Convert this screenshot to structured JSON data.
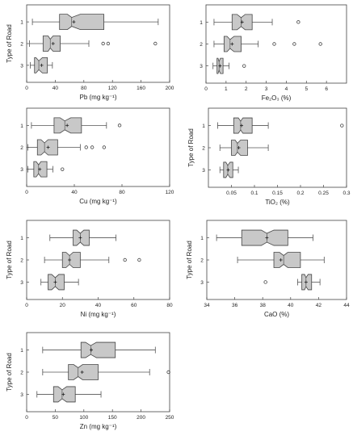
{
  "chart_data": [
    {
      "type": "boxplot",
      "xlabel": "Pb (mg kg⁻¹)",
      "ylabel": "Type of Road",
      "xlim": [
        0,
        200
      ],
      "xticks": [
        0,
        40,
        80,
        120,
        160,
        200
      ],
      "categories": [
        "1",
        "2",
        "3"
      ],
      "boxes": [
        {
          "min": 8,
          "q1": 46,
          "notch_lo": 57,
          "median": 63,
          "notch_hi": 75,
          "q3": 108,
          "max": 184,
          "mean": 66,
          "outliers": []
        },
        {
          "min": 4,
          "q1": 23,
          "notch_lo": 30,
          "median": 33,
          "notch_hi": 37,
          "q3": 47,
          "max": 87,
          "mean": 37,
          "outliers": [
            107,
            114,
            180
          ]
        },
        {
          "min": 5,
          "q1": 11,
          "notch_lo": 13,
          "median": 17,
          "notch_hi": 22,
          "q3": 29,
          "max": 36,
          "mean": 21,
          "outliers": []
        }
      ]
    },
    {
      "type": "boxplot",
      "xlabel": "Fe₂O₃ (%)",
      "ylabel": "",
      "xlim": [
        0,
        7
      ],
      "xticks": [
        0,
        1,
        2,
        3,
        4,
        5,
        6
      ],
      "categories": [
        "1",
        "2",
        "3"
      ],
      "boxes": [
        {
          "min": 0.4,
          "q1": 1.3,
          "notch_lo": 1.55,
          "median": 1.75,
          "notch_hi": 1.95,
          "q3": 2.3,
          "max": 3.3,
          "mean": 1.8,
          "outliers": [
            4.6
          ]
        },
        {
          "min": 0.4,
          "q1": 0.9,
          "notch_lo": 1.05,
          "median": 1.2,
          "notch_hi": 1.4,
          "q3": 1.75,
          "max": 2.6,
          "mean": 1.3,
          "outliers": [
            3.4,
            4.4,
            5.7
          ]
        },
        {
          "min": 0.35,
          "q1": 0.55,
          "notch_lo": 0.6,
          "median": 0.65,
          "notch_hi": 0.72,
          "q3": 0.85,
          "max": 1.15,
          "mean": 0.7,
          "outliers": [
            1.9
          ]
        }
      ]
    },
    {
      "type": "boxplot",
      "xlabel": "Cu (mg kg⁻¹)",
      "ylabel": "",
      "xlim": [
        0,
        120
      ],
      "xticks": [
        0,
        40,
        80,
        120
      ],
      "categories": [
        "1",
        "2",
        "3"
      ],
      "boxes": [
        {
          "min": 4,
          "q1": 23,
          "notch_lo": 28,
          "median": 32,
          "notch_hi": 37,
          "q3": 46,
          "max": 67,
          "mean": 34,
          "outliers": [
            78
          ]
        },
        {
          "min": 1,
          "q1": 9,
          "notch_lo": 12,
          "median": 15,
          "notch_hi": 18,
          "q3": 26,
          "max": 45,
          "mean": 18,
          "outliers": [
            50,
            55,
            65
          ]
        },
        {
          "min": 1,
          "q1": 6,
          "notch_lo": 8,
          "median": 10,
          "notch_hi": 12,
          "q3": 17,
          "max": 22,
          "mean": 11,
          "outliers": [
            30
          ]
        }
      ]
    },
    {
      "type": "boxplot",
      "xlabel": "TiO₂ (%)",
      "ylabel": "Type of Road",
      "xlim": [
        0,
        0.3
      ],
      "xticks": [
        0.05,
        0.1,
        0.15,
        0.2,
        0.25,
        0.3
      ],
      "categories": [
        "1",
        "2",
        "3"
      ],
      "boxes": [
        {
          "min": 0.02,
          "q1": 0.055,
          "notch_lo": 0.065,
          "median": 0.07,
          "notch_hi": 0.075,
          "q3": 0.095,
          "max": 0.13,
          "mean": 0.072,
          "outliers": [
            0.29
          ]
        },
        {
          "min": 0.025,
          "q1": 0.05,
          "notch_lo": 0.058,
          "median": 0.063,
          "notch_hi": 0.07,
          "q3": 0.085,
          "max": 0.13,
          "mean": 0.066,
          "outliers": []
        },
        {
          "min": 0.025,
          "q1": 0.033,
          "notch_lo": 0.038,
          "median": 0.042,
          "notch_hi": 0.047,
          "q3": 0.053,
          "max": 0.065,
          "mean": 0.043,
          "outliers": []
        }
      ]
    },
    {
      "type": "boxplot",
      "xlabel": "Ni (mg kg⁻¹)",
      "ylabel": "Type of Road",
      "xlim": [
        0,
        80
      ],
      "xticks": [
        0,
        20,
        40,
        60,
        80
      ],
      "categories": [
        "1",
        "2",
        "3"
      ],
      "boxes": [
        {
          "min": 13,
          "q1": 26,
          "notch_lo": 28,
          "median": 30,
          "notch_hi": 32,
          "q3": 35,
          "max": 50,
          "mean": 30,
          "outliers": []
        },
        {
          "min": 10,
          "q1": 20,
          "notch_lo": 22,
          "median": 24,
          "notch_hi": 26,
          "q3": 30,
          "max": 46,
          "mean": 24,
          "outliers": [
            55,
            63
          ]
        },
        {
          "min": 8,
          "q1": 12,
          "notch_lo": 14,
          "median": 16,
          "notch_hi": 18,
          "q3": 21,
          "max": 29,
          "mean": 16,
          "outliers": []
        }
      ]
    },
    {
      "type": "boxplot",
      "xlabel": "CaO (%)",
      "ylabel": "Type of Road",
      "xlim": [
        34,
        44
      ],
      "xticks": [
        34,
        36,
        38,
        40,
        42,
        44
      ],
      "categories": [
        "1",
        "2",
        "3"
      ],
      "boxes": [
        {
          "min": 34.7,
          "q1": 36.5,
          "notch_lo": 37.9,
          "median": 38.3,
          "notch_hi": 38.8,
          "q3": 39.8,
          "max": 41.6,
          "mean": 38.3,
          "outliers": []
        },
        {
          "min": 36.2,
          "q1": 38.8,
          "notch_lo": 39.2,
          "median": 39.5,
          "notch_hi": 39.8,
          "q3": 40.7,
          "max": 42.4,
          "mean": 39.3,
          "outliers": []
        },
        {
          "min": 40.5,
          "q1": 40.8,
          "notch_lo": 41.0,
          "median": 41.1,
          "notch_hi": 41.25,
          "q3": 41.5,
          "max": 42.1,
          "mean": 41.1,
          "outliers": [
            38.2
          ]
        }
      ]
    },
    {
      "type": "boxplot",
      "xlabel": "Zn (mg kg⁻¹)",
      "ylabel": "Type of Road",
      "xlim": [
        0,
        250
      ],
      "xticks": [
        0,
        50,
        100,
        150,
        200,
        250
      ],
      "categories": [
        "1",
        "2",
        "3"
      ],
      "boxes": [
        {
          "min": 28,
          "q1": 95,
          "notch_lo": 103,
          "median": 112,
          "notch_hi": 122,
          "q3": 155,
          "max": 225,
          "mean": 113,
          "outliers": []
        },
        {
          "min": 28,
          "q1": 73,
          "notch_lo": 82,
          "median": 90,
          "notch_hi": 98,
          "q3": 125,
          "max": 215,
          "mean": 97,
          "outliers": [
            248
          ]
        },
        {
          "min": 18,
          "q1": 47,
          "notch_lo": 55,
          "median": 62,
          "notch_hi": 70,
          "q3": 85,
          "max": 130,
          "mean": 64,
          "outliers": []
        }
      ]
    }
  ]
}
